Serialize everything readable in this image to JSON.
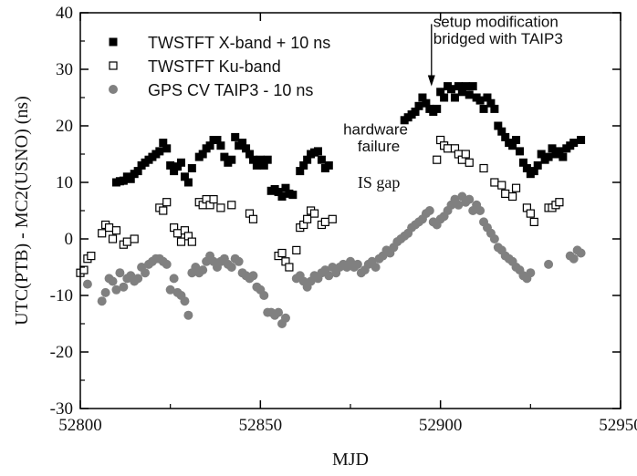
{
  "chart_data": {
    "type": "scatter",
    "xlabel": "MJD",
    "ylabel": "UTC(PTB) - MC2(USNO) (ns)",
    "xlim": [
      52800,
      52950
    ],
    "ylim": [
      -30,
      40
    ],
    "x_ticks": [
      52800,
      52850,
      52900,
      52950
    ],
    "y_ticks": [
      -30,
      -20,
      -10,
      0,
      10,
      20,
      30,
      40
    ],
    "grid": false,
    "legend_position": "top-left",
    "series": [
      {
        "name": "TWSTFT X-band + 10 ns",
        "marker": "filled-square",
        "color": "#000000",
        "points": [
          [
            52810,
            10
          ],
          [
            52811,
            10.2
          ],
          [
            52812,
            10.3
          ],
          [
            52813,
            11
          ],
          [
            52814,
            10.6
          ],
          [
            52815,
            11.5
          ],
          [
            52816,
            12
          ],
          [
            52817,
            13
          ],
          [
            52818,
            13.5
          ],
          [
            52819,
            14
          ],
          [
            52820,
            14.5
          ],
          [
            52821,
            15
          ],
          [
            52822,
            15.5
          ],
          [
            52823,
            17
          ],
          [
            52824,
            16
          ],
          [
            52825,
            13
          ],
          [
            52826,
            12
          ],
          [
            52827,
            12.8
          ],
          [
            52828,
            13.5
          ],
          [
            52829,
            11
          ],
          [
            52830,
            10
          ],
          [
            52831,
            12.5
          ],
          [
            52833,
            14.5
          ],
          [
            52834,
            15
          ],
          [
            52835,
            16
          ],
          [
            52836,
            16.5
          ],
          [
            52837,
            17.5
          ],
          [
            52838,
            17.5
          ],
          [
            52839,
            16.5
          ],
          [
            52840,
            14.5
          ],
          [
            52841,
            13.5
          ],
          [
            52842,
            14
          ],
          [
            52843,
            18
          ],
          [
            52844,
            16.5
          ],
          [
            52845,
            17
          ],
          [
            52846,
            16
          ],
          [
            52847,
            15
          ],
          [
            52848,
            14
          ],
          [
            52849,
            13
          ],
          [
            52850,
            14
          ],
          [
            52851,
            13
          ],
          [
            52852,
            14
          ],
          [
            52853,
            8.5
          ],
          [
            52854,
            8.8
          ],
          [
            52855,
            8.3
          ],
          [
            52856,
            7.5
          ],
          [
            52857,
            9
          ],
          [
            52858,
            8
          ],
          [
            52859,
            7.8
          ],
          [
            52861,
            12
          ],
          [
            52862,
            13
          ],
          [
            52863,
            14
          ],
          [
            52864,
            15
          ],
          [
            52865,
            15.3
          ],
          [
            52866,
            15.5
          ],
          [
            52867,
            14
          ],
          [
            52868,
            12.5
          ],
          [
            52869,
            13
          ],
          [
            52890,
            21
          ],
          [
            52891,
            21.5
          ],
          [
            52892,
            22
          ],
          [
            52893,
            22.5
          ],
          [
            52894,
            23.5
          ],
          [
            52895,
            25
          ],
          [
            52896,
            24
          ],
          [
            52897,
            23
          ],
          [
            52898,
            22.5
          ],
          [
            52899,
            23
          ],
          [
            52900,
            26
          ],
          [
            52901,
            25
          ],
          [
            52902,
            27
          ],
          [
            52903,
            26.5
          ],
          [
            52904,
            25
          ],
          [
            52905,
            27
          ],
          [
            52906,
            26
          ],
          [
            52907,
            27
          ],
          [
            52908,
            25.5
          ],
          [
            52909,
            27
          ],
          [
            52910,
            25
          ],
          [
            52911,
            24.5
          ],
          [
            52912,
            23
          ],
          [
            52913,
            25
          ],
          [
            52914,
            24
          ],
          [
            52915,
            23
          ],
          [
            52916,
            20
          ],
          [
            52917,
            19
          ],
          [
            52918,
            18
          ],
          [
            52919,
            17
          ],
          [
            52920,
            16.5
          ],
          [
            52921,
            17.5
          ],
          [
            52922,
            15.5
          ],
          [
            52923,
            13.5
          ],
          [
            52924,
            12.5
          ],
          [
            52925,
            11.5
          ],
          [
            52926,
            12
          ],
          [
            52927,
            13
          ],
          [
            52928,
            15
          ],
          [
            52929,
            14
          ],
          [
            52930,
            14.5
          ],
          [
            52931,
            16
          ],
          [
            52932,
            15
          ],
          [
            52933,
            15.5
          ],
          [
            52934,
            14.5
          ],
          [
            52935,
            16
          ],
          [
            52936,
            16.5
          ],
          [
            52937,
            17
          ],
          [
            52939,
            17.5
          ]
        ]
      },
      {
        "name": "TWSTFT Ku-band",
        "marker": "open-square",
        "color": "#000000",
        "points": [
          [
            52800,
            -6
          ],
          [
            52801,
            -5.5
          ],
          [
            52802,
            -3.5
          ],
          [
            52803,
            -3
          ],
          [
            52806,
            1
          ],
          [
            52807,
            2.5
          ],
          [
            52808,
            2
          ],
          [
            52809,
            0
          ],
          [
            52810,
            1.5
          ],
          [
            52812,
            -1
          ],
          [
            52813,
            -0.5
          ],
          [
            52815,
            0
          ],
          [
            52822,
            5.5
          ],
          [
            52823,
            5
          ],
          [
            52824,
            6.5
          ],
          [
            52826,
            2
          ],
          [
            52827,
            1
          ],
          [
            52828,
            -0.5
          ],
          [
            52829,
            1.5
          ],
          [
            52830,
            0.5
          ],
          [
            52831,
            -0.5
          ],
          [
            52833,
            6.5
          ],
          [
            52834,
            6
          ],
          [
            52835,
            7
          ],
          [
            52836,
            6
          ],
          [
            52837,
            7
          ],
          [
            52839,
            5.5
          ],
          [
            52842,
            6
          ],
          [
            52847,
            4.5
          ],
          [
            52848,
            3.5
          ],
          [
            52855,
            -3
          ],
          [
            52856,
            -2.5
          ],
          [
            52857,
            -4
          ],
          [
            52858,
            -5
          ],
          [
            52860,
            -2
          ],
          [
            52861,
            2
          ],
          [
            52862,
            2.5
          ],
          [
            52863,
            3.5
          ],
          [
            52864,
            5
          ],
          [
            52865,
            4.5
          ],
          [
            52867,
            2.5
          ],
          [
            52868,
            3
          ],
          [
            52870,
            3.5
          ],
          [
            52899,
            14
          ],
          [
            52900,
            17.5
          ],
          [
            52901,
            16.5
          ],
          [
            52902,
            16
          ],
          [
            52904,
            16
          ],
          [
            52905,
            15
          ],
          [
            52906,
            14
          ],
          [
            52907,
            15
          ],
          [
            52908,
            13.5
          ],
          [
            52912,
            12.5
          ],
          [
            52915,
            10
          ],
          [
            52917,
            9.5
          ],
          [
            52918,
            8
          ],
          [
            52920,
            7.5
          ],
          [
            52921,
            9
          ],
          [
            52924,
            5.5
          ],
          [
            52925,
            4.5
          ],
          [
            52926,
            3
          ],
          [
            52930,
            5.5
          ],
          [
            52931,
            5.5
          ],
          [
            52932,
            6
          ],
          [
            52933,
            6.5
          ]
        ]
      },
      {
        "name": "GPS CV TAIP3 - 10 ns",
        "marker": "filled-circle",
        "color": "#808080",
        "points": [
          [
            52802,
            -8
          ],
          [
            52806,
            -11
          ],
          [
            52807,
            -9.5
          ],
          [
            52808,
            -7
          ],
          [
            52809,
            -7.5
          ],
          [
            52810,
            -9
          ],
          [
            52811,
            -6
          ],
          [
            52812,
            -8.5
          ],
          [
            52813,
            -7
          ],
          [
            52814,
            -6.5
          ],
          [
            52815,
            -7.5
          ],
          [
            52816,
            -7
          ],
          [
            52817,
            -5
          ],
          [
            52818,
            -6
          ],
          [
            52819,
            -4.5
          ],
          [
            52820,
            -4
          ],
          [
            52821,
            -3.5
          ],
          [
            52822,
            -3.5
          ],
          [
            52823,
            -4
          ],
          [
            52824,
            -4.5
          ],
          [
            52825,
            -9
          ],
          [
            52826,
            -7
          ],
          [
            52827,
            -9.5
          ],
          [
            52828,
            -10
          ],
          [
            52829,
            -11
          ],
          [
            52830,
            -13.5
          ],
          [
            52831,
            -6
          ],
          [
            52832,
            -5
          ],
          [
            52833,
            -6
          ],
          [
            52834,
            -5.5
          ],
          [
            52835,
            -4
          ],
          [
            52836,
            -3
          ],
          [
            52837,
            -4
          ],
          [
            52838,
            -5
          ],
          [
            52839,
            -4
          ],
          [
            52840,
            -3.5
          ],
          [
            52841,
            -4.5
          ],
          [
            52842,
            -5
          ],
          [
            52843,
            -3.5
          ],
          [
            52844,
            -4
          ],
          [
            52845,
            -6
          ],
          [
            52846,
            -6.5
          ],
          [
            52847,
            -7
          ],
          [
            52848,
            -6.5
          ],
          [
            52849,
            -8.5
          ],
          [
            52850,
            -9
          ],
          [
            52851,
            -10
          ],
          [
            52852,
            -13
          ],
          [
            52853,
            -13
          ],
          [
            52854,
            -13.5
          ],
          [
            52855,
            -13
          ],
          [
            52856,
            -15
          ],
          [
            52857,
            -14
          ],
          [
            52860,
            -7
          ],
          [
            52861,
            -6.5
          ],
          [
            52862,
            -7.5
          ],
          [
            52863,
            -8.5
          ],
          [
            52864,
            -7.5
          ],
          [
            52865,
            -6.5
          ],
          [
            52866,
            -7
          ],
          [
            52867,
            -6
          ],
          [
            52868,
            -5.5
          ],
          [
            52869,
            -6.5
          ],
          [
            52870,
            -5
          ],
          [
            52871,
            -6
          ],
          [
            52872,
            -5
          ],
          [
            52873,
            -4.5
          ],
          [
            52874,
            -5
          ],
          [
            52875,
            -4
          ],
          [
            52876,
            -5
          ],
          [
            52877,
            -4.5
          ],
          [
            52878,
            -6
          ],
          [
            52879,
            -5.5
          ],
          [
            52880,
            -4.5
          ],
          [
            52881,
            -4
          ],
          [
            52882,
            -5
          ],
          [
            52883,
            -3.5
          ],
          [
            52884,
            -3
          ],
          [
            52885,
            -2
          ],
          [
            52886,
            -2.5
          ],
          [
            52887,
            -1.5
          ],
          [
            52888,
            -0.5
          ],
          [
            52889,
            0
          ],
          [
            52890,
            0.5
          ],
          [
            52891,
            1
          ],
          [
            52892,
            2
          ],
          [
            52893,
            2.5
          ],
          [
            52894,
            3
          ],
          [
            52895,
            3.5
          ],
          [
            52896,
            4.5
          ],
          [
            52897,
            5
          ],
          [
            52898,
            3
          ],
          [
            52899,
            2.5
          ],
          [
            52900,
            3.5
          ],
          [
            52901,
            4
          ],
          [
            52902,
            5
          ],
          [
            52903,
            6
          ],
          [
            52904,
            7
          ],
          [
            52905,
            6
          ],
          [
            52906,
            7.5
          ],
          [
            52907,
            6.5
          ],
          [
            52908,
            7
          ],
          [
            52909,
            5
          ],
          [
            52910,
            6
          ],
          [
            52911,
            5
          ],
          [
            52912,
            3
          ],
          [
            52913,
            2
          ],
          [
            52914,
            1
          ],
          [
            52915,
            0
          ],
          [
            52916,
            -1.5
          ],
          [
            52917,
            -2
          ],
          [
            52918,
            -3
          ],
          [
            52919,
            -3.5
          ],
          [
            52920,
            -4
          ],
          [
            52921,
            -5
          ],
          [
            52922,
            -5.5
          ],
          [
            52923,
            -6.5
          ],
          [
            52924,
            -7
          ],
          [
            52925,
            -6
          ],
          [
            52930,
            -4.5
          ],
          [
            52936,
            -3
          ],
          [
            52937,
            -3.5
          ],
          [
            52938,
            -2
          ],
          [
            52939,
            -2.5
          ]
        ]
      }
    ],
    "annotations": [
      {
        "text": "setup modification",
        "x": 52898,
        "y": 37.5
      },
      {
        "text": "bridged with TAIP3",
        "x": 52898,
        "y": 34.5
      },
      {
        "text": "hardware",
        "x": 52873,
        "y": 18.5
      },
      {
        "text": "failure",
        "x": 52877,
        "y": 15.5
      },
      {
        "text": "IS gap",
        "x": 52877,
        "y": 9
      }
    ]
  }
}
